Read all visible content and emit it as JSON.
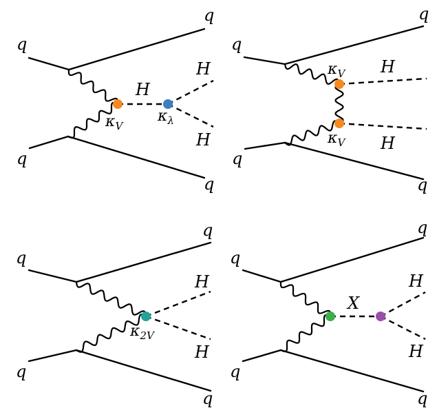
{
  "colors": {
    "kappa_V": "#f58a21",
    "kappa_lambda": "#3f7fbf",
    "kappa_2V": "#1fa39a",
    "X_left": "#3cae4a",
    "X_right": "#9a4fa8",
    "line": "#000000"
  },
  "particles": {
    "quark": "q",
    "higgs": "H",
    "resonance": "X"
  },
  "couplings": {
    "kappa": "κ",
    "V": "V",
    "lambda": "λ",
    "twoV": "2V"
  }
}
